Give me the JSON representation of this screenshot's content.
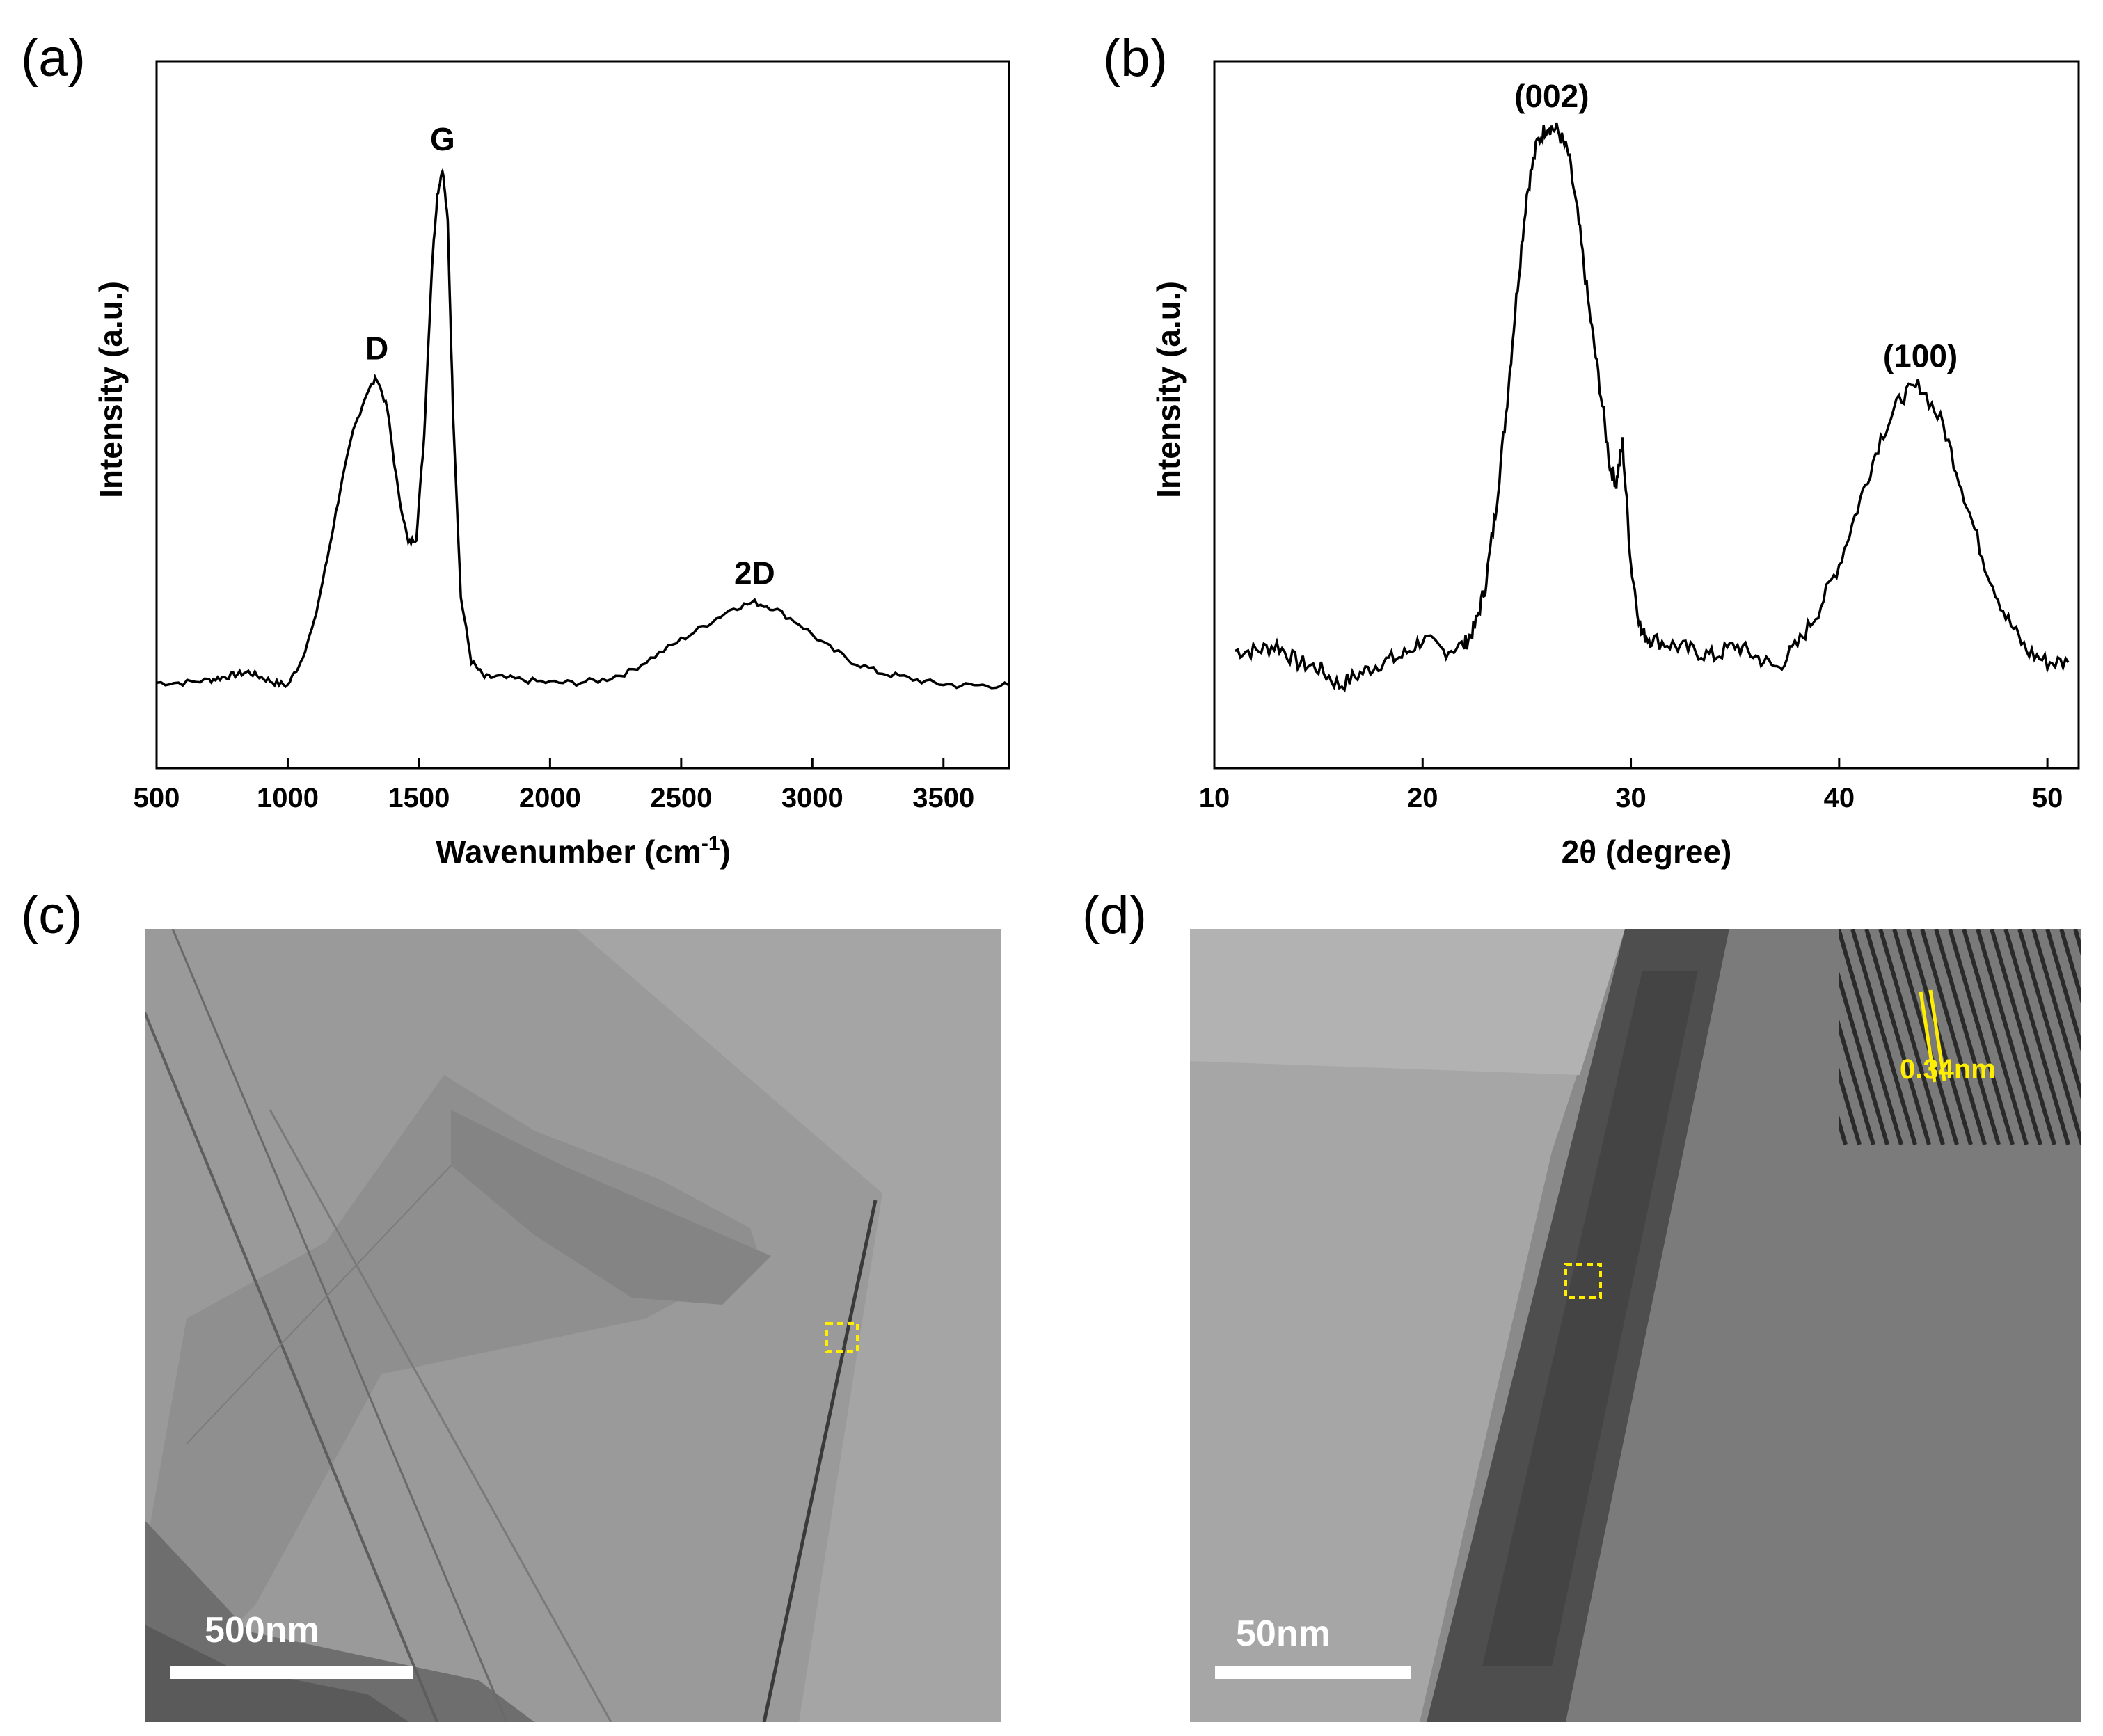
{
  "panels": {
    "a": {
      "label": "(a)"
    },
    "b": {
      "label": "(b)"
    },
    "c": {
      "label": "(c)",
      "scale_bar": "500nm"
    },
    "d": {
      "label": "(d)",
      "scale_bar": "50nm",
      "inset_spacing": "0.34nm"
    }
  },
  "colors": {
    "line": "#000000",
    "highlight": "#ffee00",
    "tem_bg": "#9a9a9a"
  },
  "chart_data": [
    {
      "id": "raman",
      "type": "line",
      "title": "",
      "xlabel": "Wavenumber (cm",
      "xlabel_sup": "-1",
      "xlabel_end": ")",
      "ylabel": "Intensity (a.u.)",
      "xlim": [
        500,
        3750
      ],
      "ylim": [
        0,
        1
      ],
      "xticks": [
        "500",
        "1000",
        "1500",
        "2000",
        "2500",
        "3000",
        "3500"
      ],
      "peaks": [
        {
          "label": "D",
          "x": 1340,
          "y": 0.61
        },
        {
          "label": "G",
          "x": 1590,
          "y": 1.0
        },
        {
          "label": "2D",
          "x": 2780,
          "y": 0.19
        }
      ],
      "series": [
        {
          "name": "Raman spectrum",
          "x": [
            500,
            600,
            700,
            750,
            800,
            850,
            900,
            950,
            1000,
            1050,
            1100,
            1150,
            1200,
            1250,
            1300,
            1340,
            1380,
            1420,
            1460,
            1490,
            1520,
            1550,
            1570,
            1590,
            1610,
            1630,
            1660,
            1700,
            1750,
            1800,
            1900,
            2000,
            2100,
            2200,
            2300,
            2400,
            2500,
            2600,
            2700,
            2780,
            2850,
            2950,
            3050,
            3150,
            3250,
            3350,
            3450,
            3550,
            3650,
            3750
          ],
          "y": [
            0.04,
            0.04,
            0.045,
            0.05,
            0.055,
            0.06,
            0.05,
            0.04,
            0.035,
            0.08,
            0.15,
            0.27,
            0.4,
            0.51,
            0.58,
            0.61,
            0.55,
            0.4,
            0.3,
            0.31,
            0.5,
            0.82,
            0.95,
            1.0,
            0.9,
            0.55,
            0.2,
            0.08,
            0.05,
            0.05,
            0.045,
            0.04,
            0.04,
            0.045,
            0.06,
            0.09,
            0.12,
            0.15,
            0.18,
            0.19,
            0.18,
            0.15,
            0.11,
            0.08,
            0.06,
            0.05,
            0.04,
            0.035,
            0.035,
            0.035
          ]
        }
      ]
    },
    {
      "id": "xrd",
      "type": "line",
      "title": "",
      "xlabel": "2θ (degree)",
      "ylabel": "Intensity (a.u.)",
      "xlim": [
        10,
        51.5
      ],
      "ylim": [
        0,
        1
      ],
      "xticks": [
        "10",
        "20",
        "30",
        "40",
        "50"
      ],
      "peaks": [
        {
          "label": "(002)",
          "x": 26.2,
          "y": 1.0
        },
        {
          "label": "(100)",
          "x": 43.9,
          "y": 0.55
        }
      ],
      "series": [
        {
          "name": "XRD pattern",
          "x": [
            11,
            12,
            13,
            14,
            15,
            16,
            17,
            18,
            19,
            20,
            21,
            22,
            22.5,
            23,
            23.5,
            24,
            24.5,
            25,
            25.5,
            26,
            26.5,
            27,
            27.5,
            28,
            28.5,
            29,
            29.3,
            29.6,
            30,
            30.5,
            31,
            32,
            33,
            34,
            35,
            36,
            37,
            38,
            39,
            40,
            41,
            42,
            43,
            43.9,
            45,
            46,
            47,
            48,
            49,
            50,
            51
          ],
          "y": [
            0.09,
            0.09,
            0.1,
            0.07,
            0.06,
            0.03,
            0.05,
            0.07,
            0.08,
            0.11,
            0.09,
            0.1,
            0.13,
            0.2,
            0.33,
            0.5,
            0.7,
            0.88,
            0.97,
            1.0,
            0.99,
            0.95,
            0.83,
            0.68,
            0.55,
            0.41,
            0.38,
            0.45,
            0.24,
            0.12,
            0.11,
            0.1,
            0.09,
            0.08,
            0.1,
            0.08,
            0.06,
            0.1,
            0.16,
            0.24,
            0.35,
            0.46,
            0.53,
            0.55,
            0.48,
            0.36,
            0.24,
            0.15,
            0.09,
            0.07,
            0.07
          ]
        }
      ]
    }
  ]
}
